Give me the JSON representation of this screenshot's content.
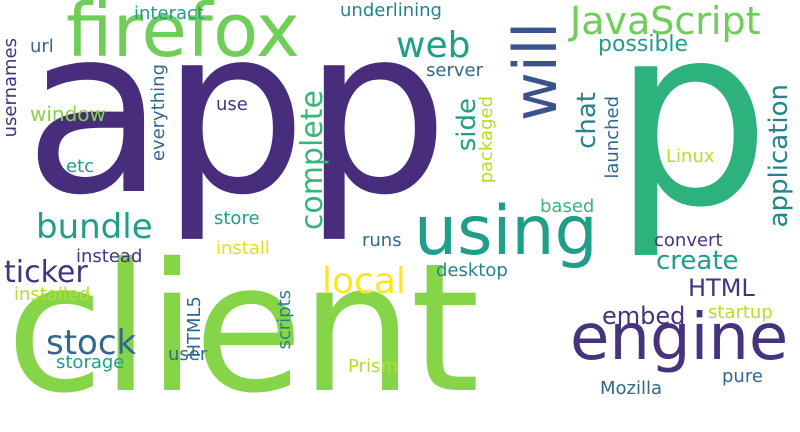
{
  "words": {
    "app": "app",
    "p": "p",
    "client": "client",
    "firefox": "firefox",
    "engine": "engine",
    "using": "using",
    "will": "will",
    "javascript": "JavaScript",
    "web": "web",
    "bundle": "bundle",
    "local": "local",
    "complete": "complete",
    "stock": "stock",
    "ticker": "ticker",
    "html": "HTML",
    "embed": "embed",
    "create": "create",
    "application": "application",
    "chat": "chat",
    "side": "side",
    "possible": "possible",
    "underlining": "underlining",
    "interact": "interact",
    "url": "url",
    "usernames": "usernames",
    "window": "window",
    "everything": "everything",
    "use": "use",
    "etc": "etc",
    "server": "server",
    "packaged": "packaged",
    "launched": "launched",
    "linux": "Linux",
    "based": "based",
    "store": "store",
    "install": "install",
    "instead": "instead",
    "installed": "installed",
    "runs": "runs",
    "desktop": "desktop",
    "convert": "convert",
    "html5": "HTML5",
    "scripts": "scripts",
    "storage": "storage",
    "user": "user",
    "prism": "Prism",
    "startup": "startup",
    "mozilla": "Mozilla",
    "pure": "pure"
  },
  "palette": [
    "#440154",
    "#472d7b",
    "#3b528b",
    "#2c728e",
    "#21918c",
    "#28ae80",
    "#5ec962",
    "#addc30",
    "#fde725"
  ]
}
